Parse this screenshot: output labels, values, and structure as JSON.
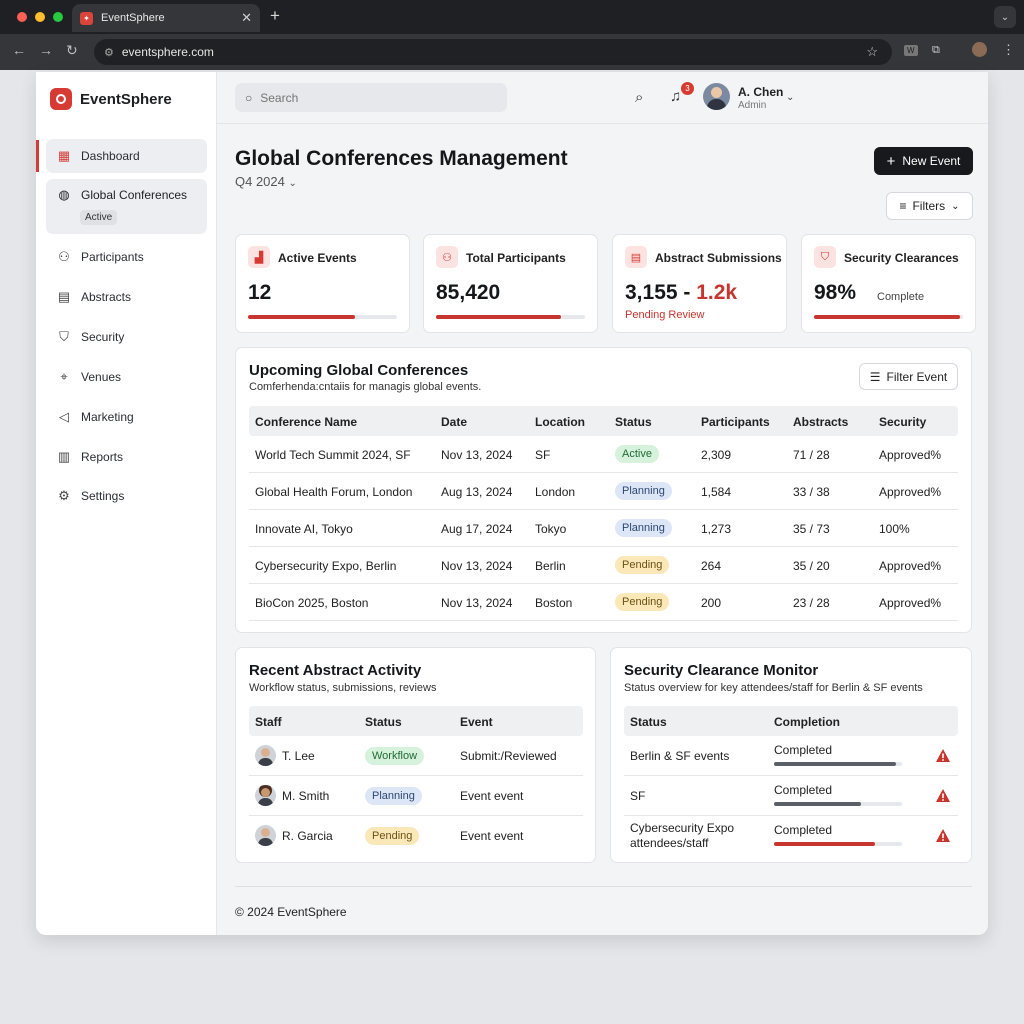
{
  "browser": {
    "tab_title": "EventSphere",
    "url": "eventsphere.com"
  },
  "sidebar": {
    "brand": "EventSphere",
    "items": [
      {
        "label": "Dashboard",
        "icon": "grid-icon"
      },
      {
        "label": "Global Conferences",
        "icon": "globe-icon",
        "badge": "Active"
      },
      {
        "label": "Participants",
        "icon": "users-icon"
      },
      {
        "label": "Abstracts",
        "icon": "document-icon"
      },
      {
        "label": "Security",
        "icon": "shield-icon"
      },
      {
        "label": "Venues",
        "icon": "map-pin-icon"
      },
      {
        "label": "Marketing",
        "icon": "megaphone-icon"
      },
      {
        "label": "Reports",
        "icon": "report-icon"
      },
      {
        "label": "Settings",
        "icon": "gear-icon"
      }
    ]
  },
  "topbar": {
    "search_placeholder": "Search",
    "notification_count": "3",
    "user_name": "A. Chen",
    "user_role": "Admin"
  },
  "header": {
    "title": "Global Conferences Management",
    "period": "Q4 2024",
    "new_event_label": "New Event",
    "filters_label": "Filters"
  },
  "stats": [
    {
      "label": "Active Events",
      "value": "12",
      "progress": 0.72
    },
    {
      "label": "Total Participants",
      "value": "85,420",
      "progress": 0.84
    },
    {
      "label": "Abstract Submissions",
      "value": "3,155 - ",
      "value_accent": "1.2k",
      "sub": "Pending Review"
    },
    {
      "label": "Security Clearances",
      "value": "98%",
      "sub": "Complete",
      "progress": 0.98
    }
  ],
  "conferences": {
    "title": "Upcoming Global Conferences",
    "subtitle": "Comferhenda:cntaiis for managis global events.",
    "filter_label": "Filter Event",
    "columns": [
      "Conference Name",
      "Date",
      "Location",
      "Status",
      "Participants",
      "Abstracts",
      "Security"
    ],
    "rows": [
      {
        "name": "World Tech Summit 2024, SF",
        "date": "Nov 13, 2024",
        "location": "SF",
        "status": "Active",
        "participants": "2,309",
        "abstracts": "71 / 28",
        "security": "Approved%"
      },
      {
        "name": "Global Health Forum, London",
        "date": "Aug 13, 2024",
        "location": "London",
        "status": "Planning",
        "participants": "1,584",
        "abstracts": "33 / 38",
        "security": "Approved%"
      },
      {
        "name": "Innovate AI, Tokyo",
        "date": "Aug 17, 2024",
        "location": "Tokyo",
        "status": "Planning",
        "participants": "1,273",
        "abstracts": "35 / 73",
        "security": "100%"
      },
      {
        "name": "Cybersecurity Expo, Berlin",
        "date": "Nov 13, 2024",
        "location": "Berlin",
        "status": "Pending",
        "participants": "264",
        "abstracts": "35 / 20",
        "security": "Approved%"
      },
      {
        "name": "BioCon 2025, Boston",
        "date": "Nov 13, 2024",
        "location": "Boston",
        "status": "Pending",
        "participants": "200",
        "abstracts": "23 / 28",
        "security": "Approved%"
      }
    ]
  },
  "abstract_activity": {
    "title": "Recent Abstract Activity",
    "subtitle": "Workflow status, submissions, reviews",
    "columns": [
      "Staff",
      "Status",
      "Event"
    ],
    "rows": [
      {
        "staff": "T. Lee",
        "status": "Workflow",
        "event": "Submit:/Reviewed"
      },
      {
        "staff": "M. Smith",
        "status": "Planning",
        "event": "Event event"
      },
      {
        "staff": "R. Garcia",
        "status": "Pending",
        "event": "Event event"
      }
    ]
  },
  "security_monitor": {
    "title": "Security Clearance Monitor",
    "subtitle": "Status overview for key attendees/staff for Berlin & SF events",
    "columns": [
      "Status",
      "Completion"
    ],
    "rows": [
      {
        "status": "Berlin & SF events",
        "completion": "Completed",
        "progress": 0.95,
        "bar_color": "#5b6068"
      },
      {
        "status": "SF",
        "completion": "Completed",
        "progress": 0.68,
        "bar_color": "#5b6068"
      },
      {
        "status": "Cybersecurity Expo attendees/staff",
        "completion": "Completed",
        "progress": 0.79,
        "bar_color": "#c6352e"
      }
    ]
  },
  "footer": {
    "text": "© 2024 EventSphere"
  },
  "colors": {
    "accent": "#d63a33",
    "dark_button": "#17191d",
    "active_pill": "#d6f1dc",
    "planning_pill": "#dce6f7",
    "pending_pill": "#fbe8b9"
  }
}
